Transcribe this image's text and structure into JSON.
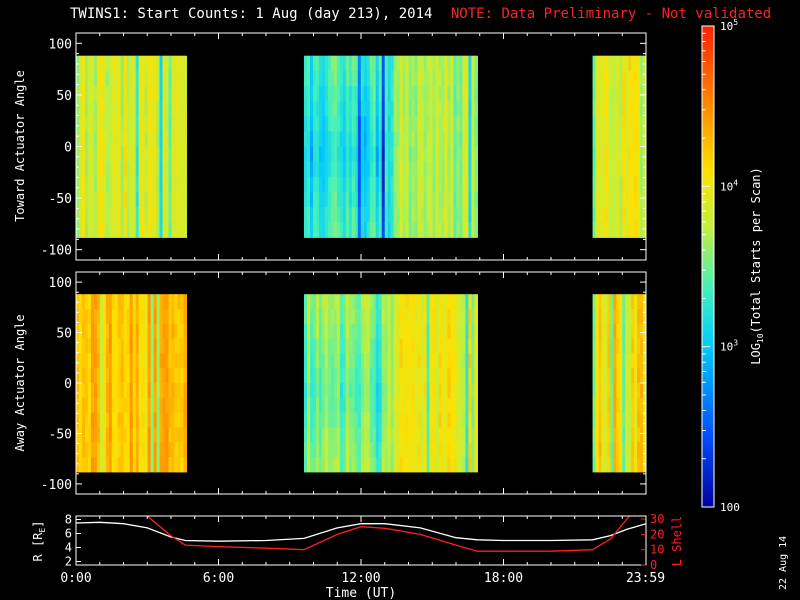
{
  "title": "TWINS1: Start Counts:  1 Aug (day 213), 2014",
  "note": "NOTE: Data Preliminary - Not validated",
  "date_stamp": "22 Aug 14",
  "colorbar": {
    "label": "LOG10(Total Starts per Scan)",
    "label_main": "LOG",
    "label_sub": "10",
    "label_rest": "(Total Starts per Scan)",
    "tick_labels": [
      "100",
      "10^3",
      "10^4",
      "10^5"
    ],
    "tick_values": [
      100,
      1000,
      10000,
      100000
    ],
    "range": [
      100,
      100000
    ],
    "scale": "log",
    "colormap": [
      "#0000a0",
      "#0050ff",
      "#00c8ff",
      "#40f0c0",
      "#c0f040",
      "#ffe000",
      "#ff8000",
      "#ff2000"
    ]
  },
  "chart_data": [
    {
      "type": "heatmap",
      "ylabel": "Toward Actuator Angle",
      "ylim": [
        -110,
        110
      ],
      "yticks": [
        -100,
        -50,
        0,
        50,
        100
      ],
      "xlim": [
        0,
        24
      ],
      "data_bands": [
        {
          "x_start": 0.0,
          "x_end": 4.65,
          "y_range": [
            -88,
            88
          ],
          "log_level_mean": 3.85
        },
        {
          "x_start": 9.6,
          "x_end": 16.9,
          "y_range": [
            -88,
            88
          ],
          "log_level_mean": 3.3
        },
        {
          "x_start": 21.75,
          "x_end": 24.0,
          "y_range": [
            -88,
            88
          ],
          "log_level_mean": 3.9
        }
      ]
    },
    {
      "type": "heatmap",
      "ylabel": "Away Actuator Angle",
      "ylim": [
        -110,
        110
      ],
      "yticks": [
        -100,
        -50,
        0,
        50,
        100
      ],
      "xlim": [
        0,
        24
      ],
      "data_bands": [
        {
          "x_start": 0.0,
          "x_end": 4.65,
          "y_range": [
            -88,
            88
          ],
          "log_level_mean": 4.2
        },
        {
          "x_start": 9.6,
          "x_end": 16.9,
          "y_range": [
            -88,
            88
          ],
          "log_level_mean": 3.6
        },
        {
          "x_start": 21.75,
          "x_end": 24.0,
          "y_range": [
            -88,
            88
          ],
          "log_level_mean": 4.15
        }
      ]
    },
    {
      "type": "line",
      "ylabel": "R [RE]",
      "ylabel_main": "R [R",
      "ylabel_sub": "E",
      "ylabel_close": "]",
      "y2label": "L Shell",
      "xlabel": "Time (UT)",
      "xticks": [
        "0:00",
        "6:00",
        "12:00",
        "18:00",
        "23:59"
      ],
      "xtick_values": [
        0,
        6,
        12,
        18,
        23.98
      ],
      "xlim": [
        0,
        24
      ],
      "ylim": [
        1.5,
        8.5
      ],
      "yticks": [
        2,
        4,
        6,
        8
      ],
      "y2lim": [
        0,
        32
      ],
      "y2ticks": [
        0,
        10,
        20,
        30
      ],
      "series": [
        {
          "color": "#ffffff",
          "axis": "left",
          "x": [
            0,
            1,
            2,
            3,
            4,
            4.6,
            6,
            8,
            9.6,
            11,
            12,
            13,
            14.5,
            16,
            16.9,
            18,
            20,
            21.75,
            22.5,
            23.2,
            24
          ],
          "y": [
            7.5,
            7.6,
            7.4,
            6.8,
            5.5,
            5.0,
            4.9,
            5.0,
            5.3,
            6.8,
            7.4,
            7.4,
            6.8,
            5.4,
            5.1,
            5.0,
            5.0,
            5.1,
            5.7,
            6.6,
            7.4
          ]
        },
        {
          "color": "#ff2020",
          "axis": "right",
          "x": [
            3.0,
            4.0,
            4.6,
            6,
            8,
            9.6,
            11,
            12,
            13,
            14.5,
            16,
            16.9,
            18,
            20,
            21.75,
            22.5,
            23.3
          ],
          "y": [
            32,
            19,
            13,
            12,
            11,
            10,
            20,
            25,
            24,
            20,
            13,
            9,
            9,
            9,
            10,
            17,
            32
          ]
        }
      ]
    }
  ]
}
